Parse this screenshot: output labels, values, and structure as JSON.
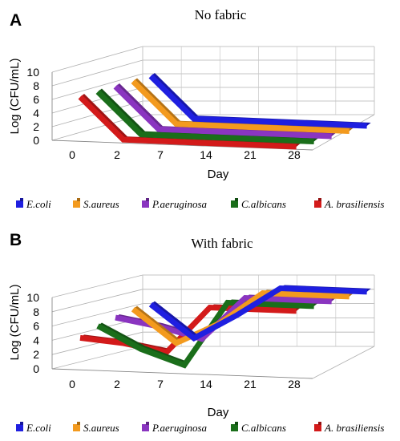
{
  "chart_data": [
    {
      "panel_label": "A",
      "type": "line",
      "title": "No fabric",
      "xlabel": "Day",
      "ylabel": "Log (CFU/mL)",
      "categories": [
        "0",
        "2",
        "7",
        "14",
        "21",
        "28"
      ],
      "ylim": [
        0,
        10
      ],
      "yticks": [
        "0",
        "2",
        "4",
        "6",
        "8",
        "10"
      ],
      "grid": true,
      "legend": "bottom",
      "series": [
        {
          "name": "E.coli",
          "color": "#1f1fe0",
          "values": [
            6,
            0,
            0,
            0,
            0,
            0
          ]
        },
        {
          "name": "S.aureus",
          "color": "#f39a1e",
          "values": [
            6,
            0,
            0,
            0,
            0,
            0
          ]
        },
        {
          "name": "P.aeruginosa",
          "color": "#8a35c0",
          "values": [
            6,
            0,
            0,
            0,
            0,
            0
          ]
        },
        {
          "name": "C.albicans",
          "color": "#1a6e1a",
          "values": [
            6,
            0,
            0,
            0,
            0,
            0
          ]
        },
        {
          "name": "A. brasiliensis",
          "color": "#d31a1a",
          "values": [
            6,
            0,
            0,
            0,
            0,
            0
          ]
        }
      ]
    },
    {
      "panel_label": "B",
      "type": "line",
      "title": "With fabric",
      "xlabel": "Day",
      "ylabel": "Log (CFU/mL)",
      "categories": [
        "0",
        "2",
        "7",
        "14",
        "21",
        "28"
      ],
      "ylim": [
        0,
        10
      ],
      "yticks": [
        "0",
        "2",
        "4",
        "6",
        "8",
        "10"
      ],
      "grid": true,
      "legend": "bottom",
      "series": [
        {
          "name": "E.coli",
          "color": "#1f1fe0",
          "values": [
            6,
            1.5,
            5,
            9,
            9,
            9
          ]
        },
        {
          "name": "S.aureus",
          "color": "#f39a1e",
          "values": [
            6,
            1.5,
            4.5,
            9,
            9,
            9
          ]
        },
        {
          "name": "P.aeruginosa",
          "color": "#8a35c0",
          "values": [
            5.5,
            4.5,
            3,
            9,
            9,
            9
          ]
        },
        {
          "name": "C.albicans",
          "color": "#1a6e1a",
          "values": [
            5,
            2,
            0,
            9,
            9,
            9
          ]
        },
        {
          "name": "A. brasiliensis",
          "color": "#d31a1a",
          "values": [
            4,
            3.5,
            2.5,
            9,
            9,
            9
          ]
        }
      ]
    }
  ]
}
